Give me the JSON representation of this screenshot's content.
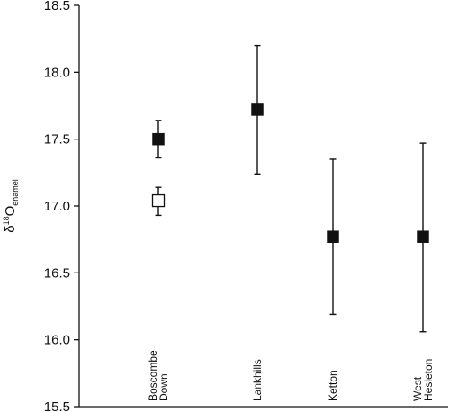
{
  "chart_data": {
    "type": "scatter",
    "title": "",
    "xlabel": "",
    "ylabel": {
      "prefix": "δ",
      "sup": "18",
      "main": "O",
      "sub": "enamel"
    },
    "ylim": [
      15.5,
      18.5
    ],
    "yticks": [
      "15.5",
      "16.0",
      "16.5",
      "17.0",
      "17.5",
      "18.0",
      "18.5"
    ],
    "grid": false,
    "legend": "none",
    "categories": [
      [
        "Boscombe",
        "Down"
      ],
      [
        "Lankhills"
      ],
      [
        "Ketton"
      ],
      [
        "West",
        "Hesleton"
      ]
    ],
    "points": [
      {
        "category": 0,
        "y": 17.5,
        "err_low": 17.36,
        "err_high": 17.64,
        "marker": "filled-square"
      },
      {
        "category": 0,
        "y": 17.04,
        "err_low": 16.93,
        "err_high": 17.14,
        "marker": "open-square"
      },
      {
        "category": 1,
        "y": 17.72,
        "err_low": 17.24,
        "err_high": 18.2,
        "marker": "filled-square"
      },
      {
        "category": 2,
        "y": 16.77,
        "err_low": 16.19,
        "err_high": 17.35,
        "marker": "filled-square"
      },
      {
        "category": 3,
        "y": 16.77,
        "err_low": 16.06,
        "err_high": 17.47,
        "marker": "filled-square"
      }
    ],
    "colors": {
      "marker": "#111111",
      "axis": "#111111",
      "open_fill": "#ffffff"
    }
  }
}
